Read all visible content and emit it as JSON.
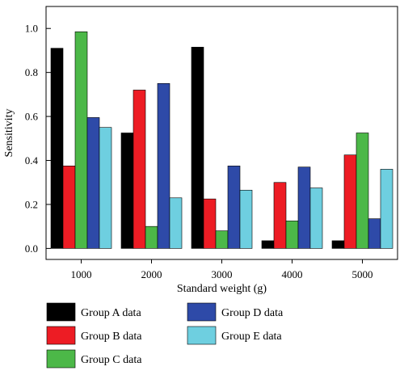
{
  "chart_data": {
    "type": "bar",
    "categories": [
      "1000",
      "2000",
      "3000",
      "4000",
      "5000"
    ],
    "series": [
      {
        "name": "Group A data",
        "color": "#000000",
        "values": [
          0.91,
          0.525,
          0.915,
          0.035,
          0.035
        ]
      },
      {
        "name": "Group B data",
        "color": "#ed1c24",
        "values": [
          0.375,
          0.72,
          0.225,
          0.3,
          0.425
        ]
      },
      {
        "name": "Group C data",
        "color": "#4cb848",
        "values": [
          0.985,
          0.1,
          0.08,
          0.125,
          0.525
        ]
      },
      {
        "name": "Group D data",
        "color": "#2e4aa8",
        "values": [
          0.595,
          0.75,
          0.375,
          0.37,
          0.135
        ]
      },
      {
        "name": "Group E data",
        "color": "#6ecfe0",
        "values": [
          0.55,
          0.23,
          0.265,
          0.275,
          0.36
        ]
      }
    ],
    "xlabel": "Standard weight (g)",
    "ylabel": "Sensitivity",
    "ylim": [
      -0.05,
      1.1
    ],
    "yticks": [
      "0.0",
      "0.2",
      "0.4",
      "0.6",
      "0.8",
      "1.0"
    ],
    "legend_position": "bottom",
    "grid": false
  }
}
